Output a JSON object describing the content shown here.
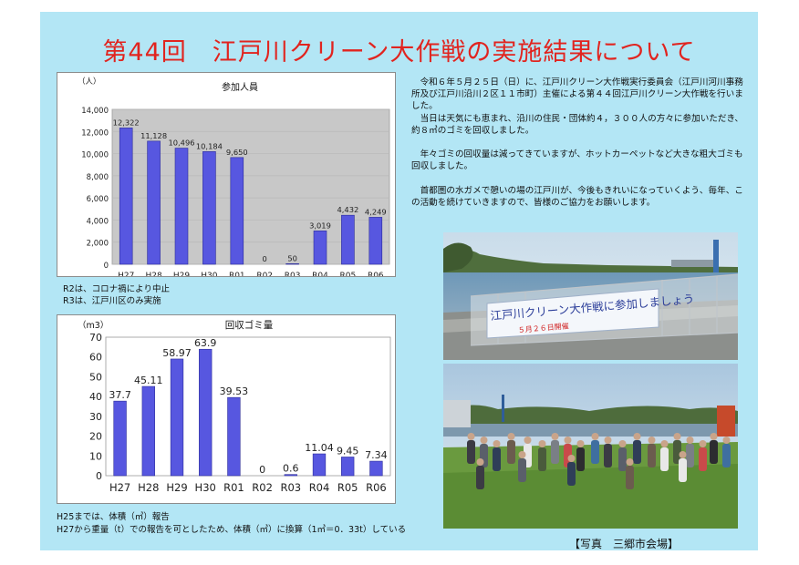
{
  "title": "第44回　江戸川クリーン大作戦の実施結果について",
  "charts": [
    {
      "chart_data": {
        "type": "bar",
        "title": "参加人員",
        "unit_label": "（人）",
        "categories": [
          "H27",
          "H28",
          "H29",
          "H30",
          "R01",
          "R02",
          "R03",
          "R04",
          "R05",
          "R06"
        ],
        "values": [
          12322,
          11128,
          10496,
          10184,
          9650,
          0,
          50,
          3019,
          4432,
          4249
        ],
        "value_labels": [
          "12,322",
          "11,128",
          "10,496",
          "10,184",
          "9,650",
          "0",
          "50",
          "3,019",
          "4,432",
          "4,249"
        ],
        "ylim": [
          0,
          14000
        ],
        "yticks": [
          "0",
          "2,000",
          "4,000",
          "6,000",
          "8,000",
          "10,000",
          "12,000",
          "14,000"
        ],
        "ytick_values": [
          0,
          2000,
          4000,
          6000,
          8000,
          10000,
          12000,
          14000
        ],
        "grid": true,
        "bar_color": "#5757e0"
      }
    },
    {
      "chart_data": {
        "type": "bar",
        "title": "回収ゴミ量",
        "unit_label": "（m3）",
        "categories": [
          "H27",
          "H28",
          "H29",
          "H30",
          "R01",
          "R02",
          "R03",
          "R04",
          "R05",
          "R06"
        ],
        "values": [
          37.7,
          45.11,
          58.97,
          63.9,
          39.53,
          0,
          0.6,
          11.04,
          9.45,
          7.34
        ],
        "value_labels": [
          "37.7",
          "45.11",
          "58.97",
          "63.9",
          "39.53",
          "0",
          "0.6",
          "11.04",
          "9.45",
          "7.34"
        ],
        "ylim": [
          0,
          70
        ],
        "yticks": [
          "0",
          "10",
          "20",
          "30",
          "40",
          "50",
          "60",
          "70"
        ],
        "ytick_values": [
          0,
          10,
          20,
          30,
          40,
          50,
          60,
          70
        ],
        "grid": false,
        "bar_color": "#5757e0"
      }
    }
  ],
  "notes1": [
    "R2は、コロナ禍により中止",
    "R3は、江戸川区のみ実施"
  ],
  "notes2": [
    "H25までは、体積（㎥）報告",
    "H27から重量（t）での報告を可としたため、体積（㎥）に換算（1㎥＝0．33t）している"
  ],
  "paragraphs": [
    "令和６年５月２５日（日）に、江戸川クリーン大作戦実行委員会（江戸川河川事務所及び江戸川沿川２区１１市町）主催による第４４回江戸川クリーン大作戦を行いました。",
    "当日は天気にも恵まれ、沿川の住民・団体約４，３００人の方々に参加いただき、約８㎥のゴミを回収しました。",
    "年々ゴミの回収量は減ってきていますが、ホットカーペットなど大きな粗大ゴミも回収しました。",
    "首都圏の水ガメで憩いの場の江戸川が、今後もきれいになっていくよう、毎年、この活動を続けていきますので、皆様のご協力をお願いします。"
  ],
  "banner": {
    "line1": "江戸川クリーン大作戦に参加しましょう",
    "line2": "５月２６日開催"
  },
  "caption": "【写真　三郷市会場】"
}
